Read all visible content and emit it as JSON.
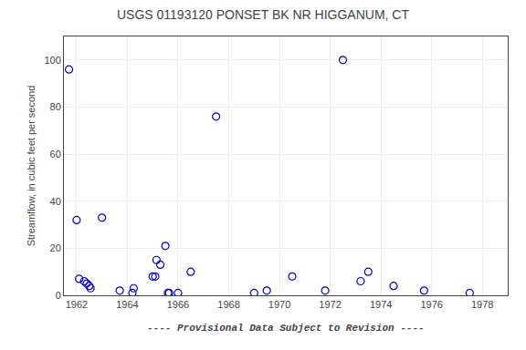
{
  "chart_data": {
    "type": "scatter",
    "title": "USGS 01193120 PONSET BK NR HIGGANUM, CT",
    "ylabel": "Streamflow, in cubic feet per second",
    "annotations": [
      "---- Provisional Data Subject to Revision ----"
    ],
    "x": [
      1961.7,
      1962.0,
      1962.1,
      1962.3,
      1962.4,
      1962.5,
      1962.55,
      1963.0,
      1963.7,
      1964.2,
      1964.25,
      1965.0,
      1965.1,
      1965.15,
      1965.3,
      1965.5,
      1965.6,
      1965.65,
      1966.0,
      1966.5,
      1967.5,
      1969.0,
      1969.5,
      1970.5,
      1971.8,
      1972.5,
      1973.2,
      1973.5,
      1974.5,
      1975.7,
      1977.5
    ],
    "values": [
      96,
      32,
      7,
      6,
      5,
      4,
      3,
      33,
      2,
      1,
      3,
      8,
      8,
      15,
      13,
      21,
      1,
      1,
      1,
      10,
      76,
      1,
      2,
      8,
      2,
      100,
      6,
      10,
      4,
      2,
      1
    ],
    "color": "#0000cc",
    "marker": "circle-open",
    "xlim": [
      1961.5,
      1979
    ],
    "ylim": [
      0,
      110
    ],
    "xticks": [
      1962,
      1964,
      1966,
      1968,
      1970,
      1972,
      1974,
      1976,
      1978
    ],
    "yticks": [
      0,
      20,
      40,
      60,
      80,
      100
    ],
    "grid": true
  }
}
